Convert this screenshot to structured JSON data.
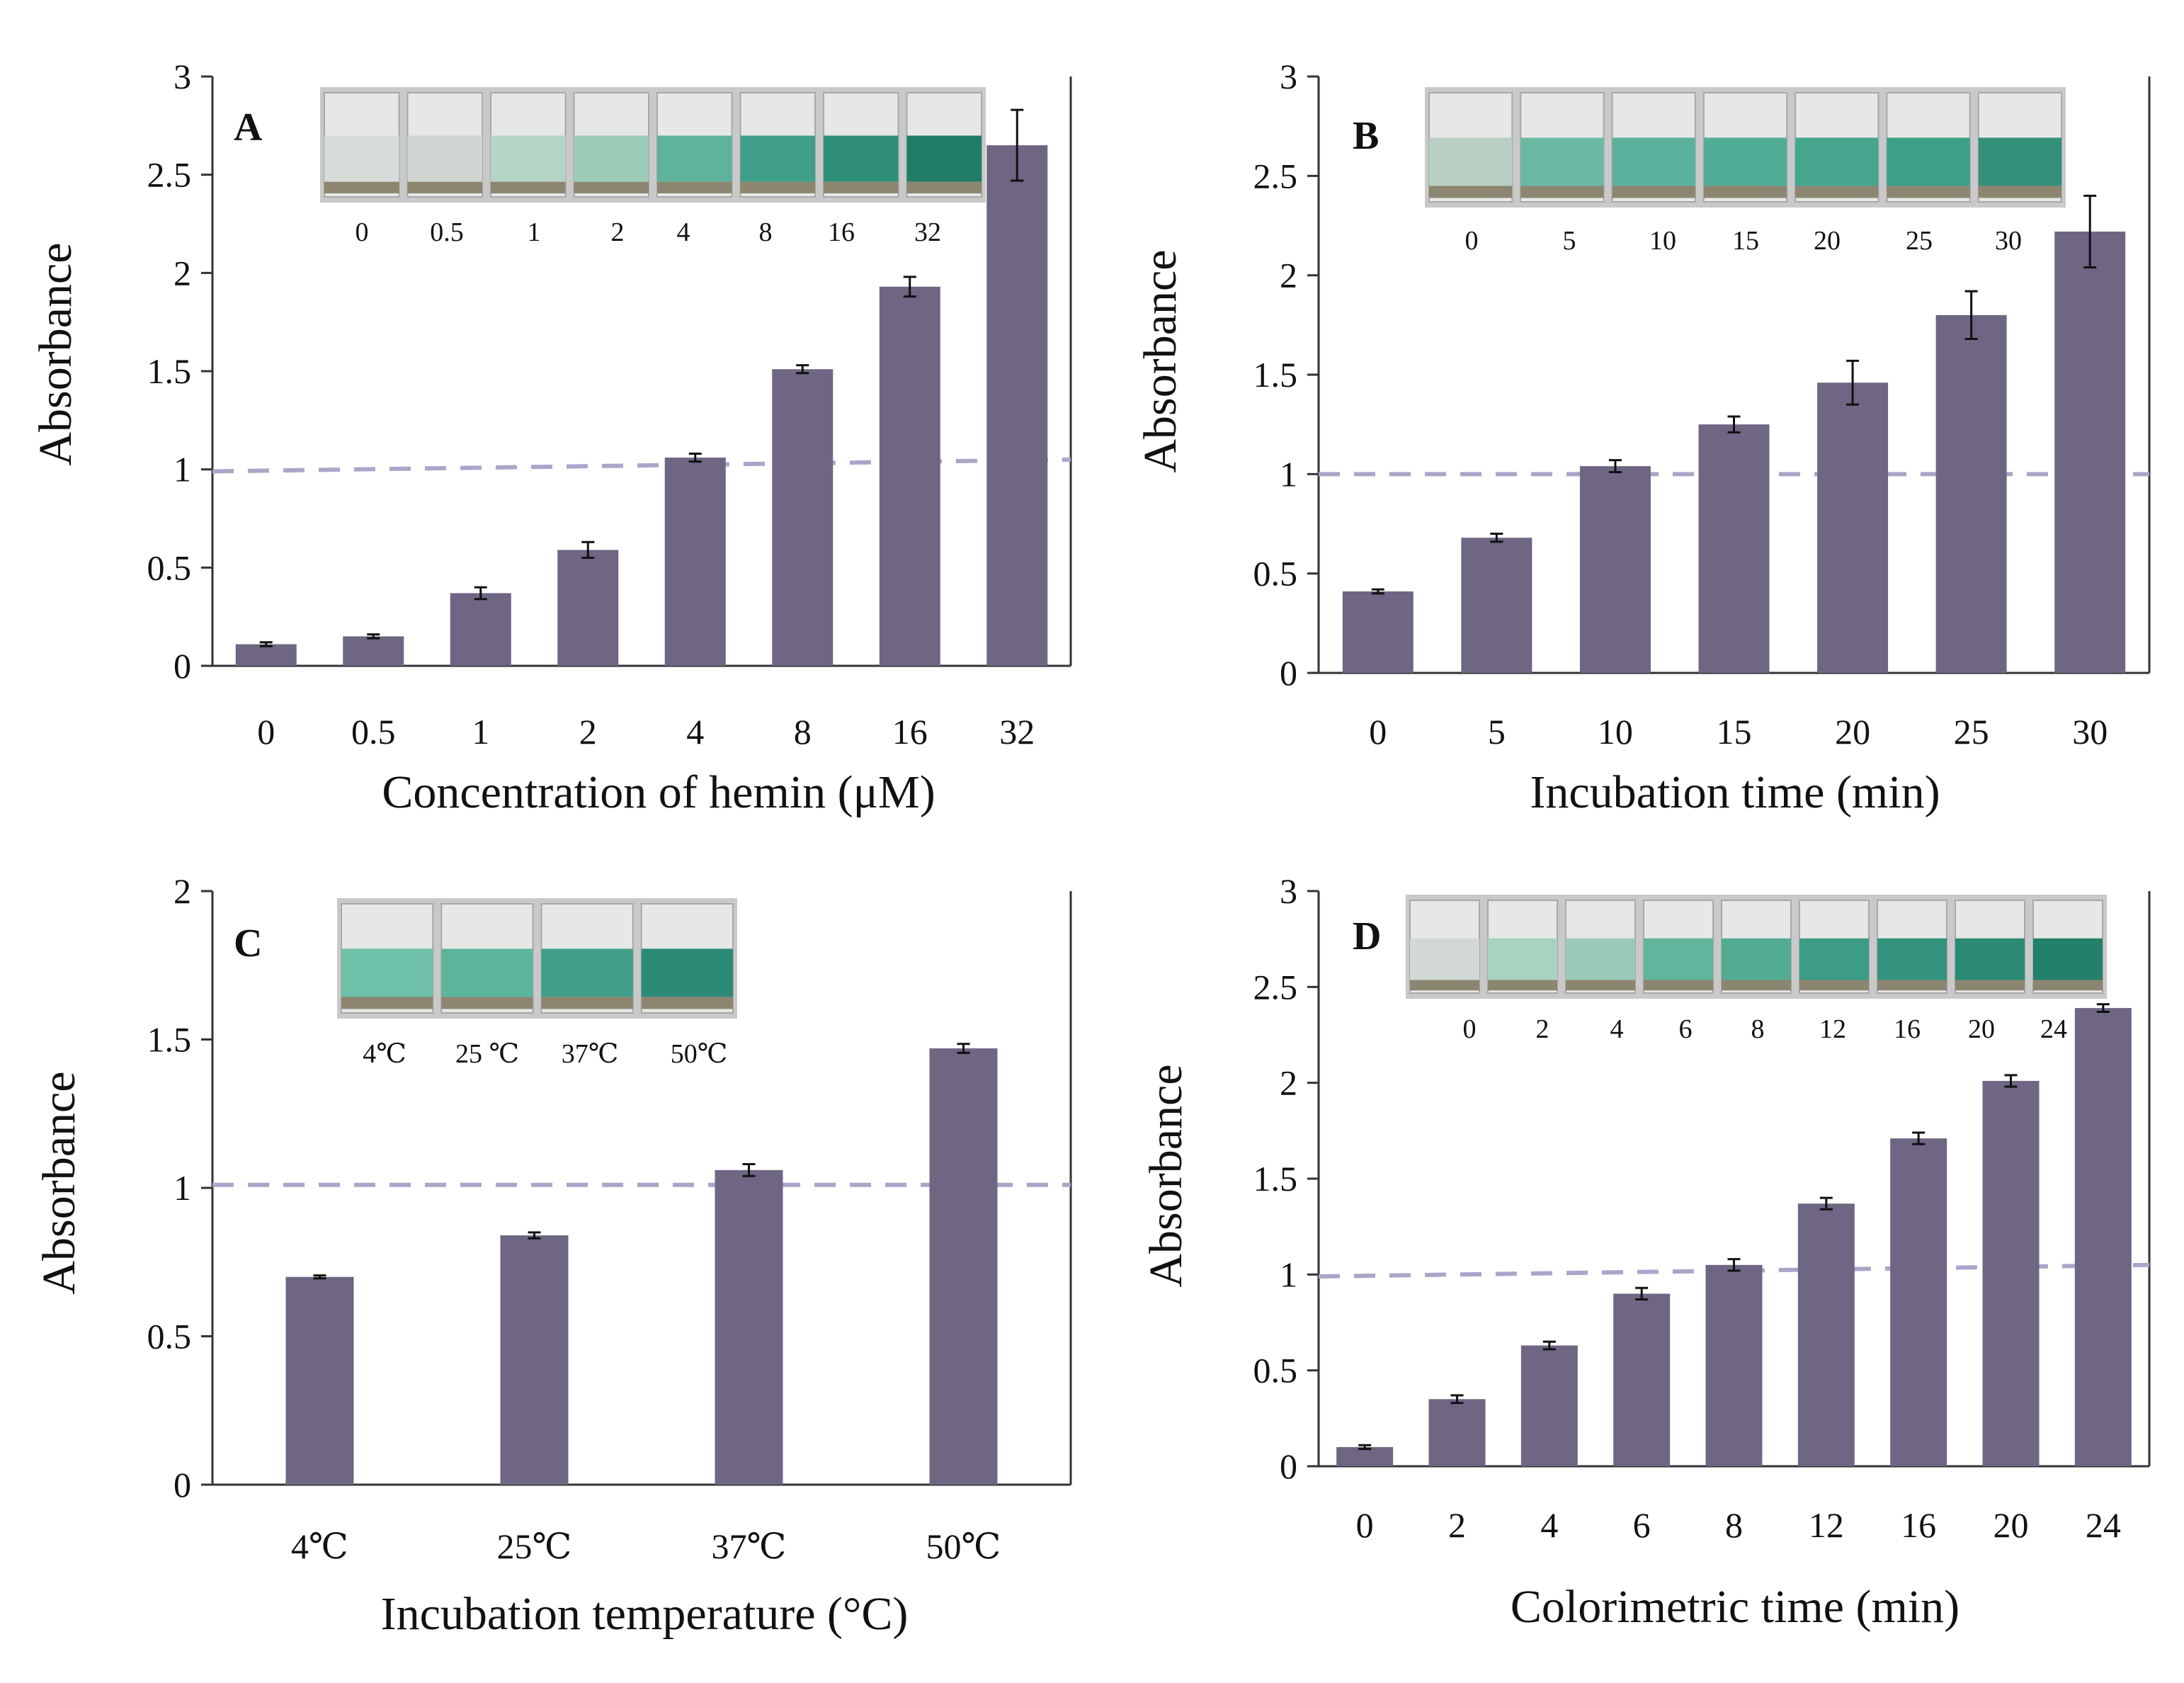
{
  "chart_data": [
    {
      "panel": "A",
      "type": "bar",
      "ylabel": "Absorbance",
      "xlabel": "Concentration of hemin (μM)",
      "ylim": [
        0,
        3
      ],
      "yticks": [
        "0",
        "0.5",
        "1",
        "1.5",
        "2",
        "2.5",
        "3"
      ],
      "categories": [
        "0",
        "0.5",
        "1",
        "2",
        "4",
        "8",
        "16",
        "32"
      ],
      "values": [
        0.11,
        0.15,
        0.37,
        0.59,
        1.06,
        1.51,
        1.93,
        2.65
      ],
      "errors": [
        0.01,
        0.01,
        0.03,
        0.04,
        0.02,
        0.02,
        0.05,
        0.18
      ],
      "threshold": [
        0.99,
        1.05
      ],
      "grid": false,
      "inset": {
        "labels": [
          "0",
          "0.5",
          "1",
          "2",
          "4",
          "8",
          "16",
          "32"
        ],
        "colors": [
          "#d8dcd8",
          "#cfd6d2",
          "#b5d4c6",
          "#9ccbb7",
          "#5fb39b",
          "#3f9e87",
          "#2f8f79",
          "#1f7d66"
        ]
      }
    },
    {
      "panel": "B",
      "type": "bar",
      "ylabel": "Absorbance",
      "xlabel": "Incubation time (min)",
      "ylim": [
        0,
        3
      ],
      "yticks": [
        "0",
        "0.5",
        "1",
        "1.5",
        "2",
        "2.5",
        "3"
      ],
      "categories": [
        "0",
        "5",
        "10",
        "15",
        "20",
        "25",
        "30"
      ],
      "values": [
        0.41,
        0.68,
        1.04,
        1.25,
        1.46,
        1.8,
        2.22
      ],
      "errors": [
        0.01,
        0.02,
        0.03,
        0.04,
        0.11,
        0.12,
        0.18
      ],
      "threshold": [
        1.0,
        1.0
      ],
      "grid": false,
      "inset": {
        "labels": [
          "0",
          "5",
          "10",
          "15",
          "20",
          "25",
          "30"
        ],
        "colors": [
          "#b9cfc4",
          "#6ab9a3",
          "#5bb29c",
          "#52ad96",
          "#46a68e",
          "#3c9f87",
          "#338f7a"
        ]
      }
    },
    {
      "panel": "C",
      "type": "bar",
      "ylabel": "Absorbance",
      "xlabel": "Incubation temperature (°C)",
      "ylim": [
        0,
        2
      ],
      "yticks": [
        "0",
        "0.5",
        "1",
        "1.5",
        "2"
      ],
      "categories": [
        "4℃",
        "25℃",
        "37℃",
        "50℃"
      ],
      "values": [
        0.7,
        0.84,
        1.06,
        1.47
      ],
      "errors": [
        0.005,
        0.01,
        0.02,
        0.015
      ],
      "threshold": [
        1.01,
        1.01
      ],
      "grid": false,
      "inset": {
        "labels": [
          "4℃",
          "25 ℃",
          "37℃",
          "50℃"
        ],
        "colors": [
          "#6fc0a8",
          "#5db59d",
          "#3f9e88",
          "#2a8a75"
        ]
      }
    },
    {
      "panel": "D",
      "type": "bar",
      "ylabel": "Absorbance",
      "xlabel": "Colorimetric time (min)",
      "ylim": [
        0,
        3
      ],
      "yticks": [
        "0",
        "0.5",
        "1",
        "1.5",
        "2",
        "2.5",
        "3"
      ],
      "categories": [
        "0",
        "2",
        "4",
        "6",
        "8",
        "12",
        "16",
        "20",
        "24"
      ],
      "values": [
        0.1,
        0.35,
        0.63,
        0.9,
        1.05,
        1.37,
        1.71,
        2.01,
        2.39
      ],
      "errors": [
        0.01,
        0.02,
        0.02,
        0.03,
        0.03,
        0.03,
        0.03,
        0.03,
        0.02
      ],
      "threshold": [
        0.99,
        1.05
      ],
      "grid": false,
      "inset": {
        "labels": [
          "0",
          "2",
          "4",
          "6",
          "8",
          "12",
          "16",
          "20",
          "24"
        ],
        "colors": [
          "#d2d8d4",
          "#a9d2c1",
          "#9bcbb8",
          "#62b59d",
          "#52ab93",
          "#3c9c85",
          "#33937d",
          "#2a8a74",
          "#238069"
        ]
      }
    }
  ],
  "style": {
    "bar_color": "#6e6682",
    "threshold_color": "#a9a6c9",
    "axis_color": "#333333"
  }
}
